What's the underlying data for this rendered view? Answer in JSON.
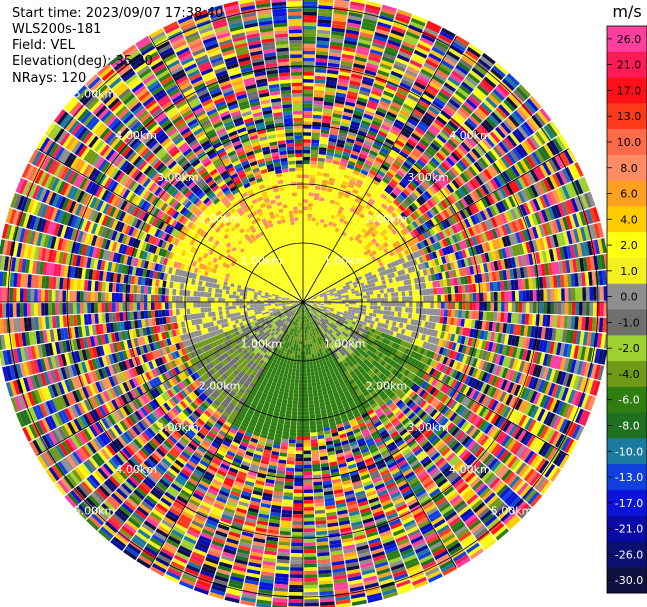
{
  "header": {
    "start_time": "Start time: 2023/09/07 17:38:40",
    "instrument": "WLS200s-181",
    "field": "Field: VEL",
    "elevation": "Elevation(deg): 35.30",
    "nrays": "NRays: 120"
  },
  "colorbar": {
    "unit_label": "m/s",
    "ticks": [
      "26.0",
      "21.0",
      "17.0",
      "13.0",
      "10.0",
      "8.0",
      "6.0",
      "4.0",
      "2.0",
      "1.0",
      "0.0",
      "-1.0",
      "-2.0",
      "-4.0",
      "-6.0",
      "-8.0",
      "-10.0",
      "-13.0",
      "-17.0",
      "-21.0",
      "-26.0",
      "-30.0"
    ],
    "colors": [
      "#ff3fa0",
      "#ff1a58",
      "#ff0f16",
      "#ff3a1a",
      "#ff6a48",
      "#ff8c64",
      "#ffa020",
      "#ffcc00",
      "#ffff10",
      "#f4f020",
      "#8f8f8f",
      "#6f6f6f",
      "#9ed030",
      "#6f9a18",
      "#2e7e10",
      "#1f7020",
      "#1a7aa0",
      "#1040e0",
      "#0a14d8",
      "#0a0aa8",
      "#0a1070",
      "#101040"
    ]
  },
  "chart_data": {
    "type": "heatmap",
    "title": "",
    "projection": "polar PPI",
    "field": "VEL",
    "units": "m/s",
    "elevation_deg": 35.3,
    "nrays": 120,
    "range_rings_km": [
      1.0,
      2.0,
      3.0,
      4.0,
      5.0
    ],
    "ring_labels": [
      "1.00km",
      "2.00km",
      "3.00km",
      "4.00km",
      "5.00km"
    ],
    "spoke_angles_deg": [
      0,
      30,
      60,
      90,
      120,
      150,
      180,
      210,
      240,
      270,
      300,
      330
    ],
    "velocity_scale": [
      -30,
      -26,
      -21,
      -17,
      -13,
      -10,
      -8,
      -6,
      -4,
      -2,
      -1,
      0,
      1,
      2,
      4,
      6,
      8,
      10,
      13,
      17,
      21,
      26
    ],
    "structure": [
      {
        "sector": "north",
        "range_km": [
          0,
          2.2
        ],
        "value_ms": 3
      },
      {
        "sector": "south",
        "range_km": [
          0,
          2.2
        ],
        "value_ms": -5
      },
      {
        "sector": "east-west mid",
        "range_km": [
          0,
          2.0
        ],
        "value_ms": 0
      },
      {
        "sector": "all",
        "range_km": [
          2.2,
          5.2
        ],
        "value_ms": "noise"
      }
    ]
  }
}
